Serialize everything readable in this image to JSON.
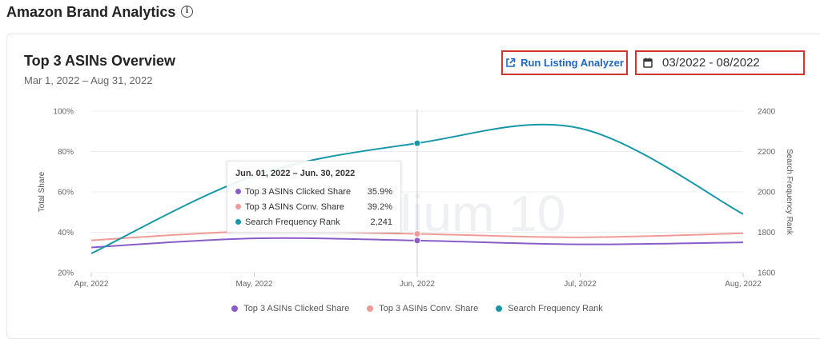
{
  "header": {
    "title": "Amazon Brand Analytics",
    "info_icon": "info-circle-icon"
  },
  "card": {
    "title": "Top 3 ASINs Overview",
    "subtitle": "Mar 1, 2022 – Aug 31, 2022"
  },
  "toolbar": {
    "run_label": "Run Listing Analyzer",
    "run_icon": "external-link-icon",
    "date_range": "03/2022 - 08/2022",
    "date_icon": "calendar-icon"
  },
  "watermark": "lium 10",
  "colors": {
    "clicked": "#8a5cc9",
    "conv": "#f29a96",
    "sfr": "#1597a8",
    "accent_link": "#1f67c4",
    "highlight_border": "#d0352f"
  },
  "tooltip": {
    "title": "Jun. 01, 2022 – Jun. 30, 2022",
    "rows": [
      {
        "label": "Top 3 ASINs Clicked Share",
        "value": "35.9%"
      },
      {
        "label": "Top 3 ASINs Conv. Share",
        "value": "39.2%"
      },
      {
        "label": "Search Frequency Rank",
        "value": "2,241"
      }
    ]
  },
  "chart_data": {
    "type": "line",
    "categories": [
      "Apr, 2022",
      "May, 2022",
      "Jun, 2022",
      "Jul, 2022",
      "Aug, 2022"
    ],
    "ylabel": "Total Share",
    "y2label": "Search Frequency Rank",
    "ylim": [
      20,
      100
    ],
    "y_ticks": [
      "20%",
      "40%",
      "60%",
      "80%",
      "100%"
    ],
    "y2lim": [
      1600,
      2400
    ],
    "y2_ticks": [
      "1600",
      "1800",
      "2000",
      "2200",
      "2400"
    ],
    "grid": true,
    "legend_position": "bottom",
    "highlighted_category": "Jun, 2022",
    "series": [
      {
        "name": "Top 3 ASINs Clicked Share",
        "axis": "left",
        "color": "#8a5cc9",
        "values": [
          32.5,
          37.0,
          35.9,
          34.0,
          35.0
        ]
      },
      {
        "name": "Top 3 ASINs Conv. Share",
        "axis": "left",
        "color": "#f29a96",
        "values": [
          36.0,
          40.5,
          39.2,
          37.5,
          39.5
        ]
      },
      {
        "name": "Search Frequency Rank",
        "axis": "right",
        "color": "#1597a8",
        "values": [
          1695,
          2080,
          2241,
          2315,
          1890
        ]
      }
    ]
  },
  "legend": [
    {
      "label": "Top 3 ASINs Clicked Share"
    },
    {
      "label": "Top 3 ASINs Conv. Share"
    },
    {
      "label": "Search Frequency Rank"
    }
  ]
}
